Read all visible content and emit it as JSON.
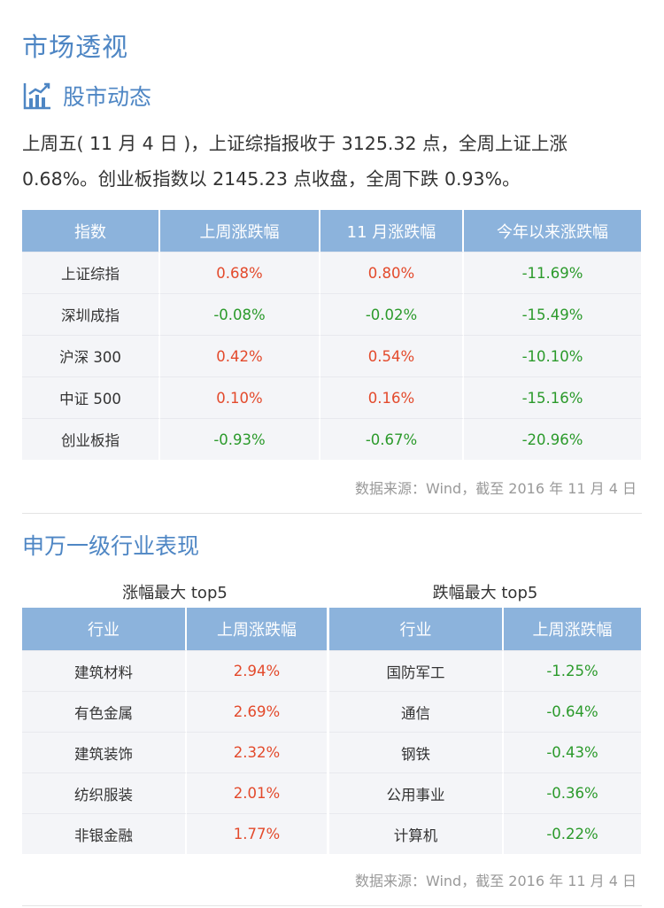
{
  "page": {
    "title": "市场透视",
    "subtitle": "股市动态",
    "summary": "上周五( 11 月 4 日 )，上证综指报收于 3125.32 点，全周上证上涨 0.68%。创业板指数以 2145.23 点收盘，全周下跌 0.93%。",
    "icon": "bar-chart-trend-icon"
  },
  "index_table": {
    "headers": [
      "指数",
      "上周涨跌幅",
      "11 月涨跌幅",
      "今年以来涨跌幅"
    ],
    "rows": [
      {
        "name": "上证综指",
        "week": "0.68%",
        "month": "0.80%",
        "ytd": "-11.69%"
      },
      {
        "name": "深圳成指",
        "week": "-0.08%",
        "month": "-0.02%",
        "ytd": "-15.49%"
      },
      {
        "name": "沪深 300",
        "week": "0.42%",
        "month": "0.54%",
        "ytd": "-10.10%"
      },
      {
        "name": "中证 500",
        "week": "0.10%",
        "month": "0.16%",
        "ytd": "-15.16%"
      },
      {
        "name": "创业板指",
        "week": "-0.93%",
        "month": "-0.67%",
        "ytd": "-20.96%"
      }
    ],
    "source": "数据来源：Wind，截至 2016 年 11 月 4 日"
  },
  "industry": {
    "title": "申万一级行业表现",
    "top_caption": "涨幅最大 top5",
    "bottom_caption": "跌幅最大 top5",
    "headers": [
      "行业",
      "上周涨跌幅"
    ],
    "top": [
      {
        "name": "建筑材料",
        "change": "2.94%"
      },
      {
        "name": "有色金属",
        "change": "2.69%"
      },
      {
        "name": "建筑装饰",
        "change": "2.32%"
      },
      {
        "name": "纺织服装",
        "change": "2.01%"
      },
      {
        "name": "非银金融",
        "change": "1.77%"
      }
    ],
    "bottom": [
      {
        "name": "国防军工",
        "change": "-1.25%"
      },
      {
        "name": "通信",
        "change": "-0.64%"
      },
      {
        "name": "钢铁",
        "change": "-0.43%"
      },
      {
        "name": "公用事业",
        "change": "-0.36%"
      },
      {
        "name": "计算机",
        "change": "-0.22%"
      }
    ],
    "source": "数据来源：Wind，截至 2016 年 11 月 4 日"
  },
  "colors": {
    "accent": "#4e86c4",
    "header_bg": "#8cb3dc",
    "row_bg": "#f4f5f8",
    "up": "#e34a2c",
    "down": "#2b9a2b"
  }
}
